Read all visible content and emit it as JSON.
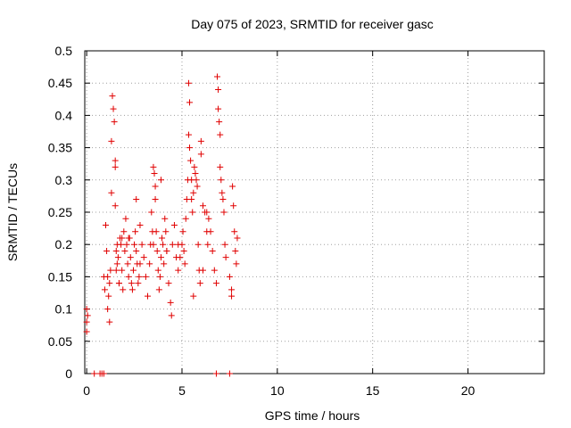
{
  "chart_data": {
    "type": "scatter",
    "title": "Day 075 of 2023, SRMTID for receiver gasc",
    "xlabel": "GPS time / hours",
    "ylabel": "SRMTID / TECUs",
    "xlim": [
      -0.1,
      24
    ],
    "ylim": [
      0,
      0.5
    ],
    "x_ticks": [
      0,
      5,
      10,
      15,
      20
    ],
    "x_tick_labels": [
      "0",
      "5",
      "10",
      "15",
      "20"
    ],
    "y_ticks": [
      0,
      0.05,
      0.1,
      0.15,
      0.2,
      0.25,
      0.3,
      0.35,
      0.4,
      0.45,
      0.5
    ],
    "y_tick_labels": [
      "0",
      "0.05",
      "0.1",
      "0.15",
      "0.2",
      "0.25",
      "0.3",
      "0.35",
      "0.4",
      "0.45",
      "0.5"
    ],
    "grid": true,
    "legend": "none",
    "marker": "plus",
    "color": "#e00000",
    "series": [
      {
        "name": "SRMTID",
        "x": [
          0.0,
          0.0,
          0.0,
          0.05,
          0.4,
          0.7,
          0.8,
          0.9,
          6.8,
          7.5,
          0.9,
          0.95,
          1.0,
          1.05,
          1.1,
          1.1,
          1.15,
          1.2,
          1.2,
          1.25,
          1.3,
          1.3,
          1.35,
          1.4,
          1.45,
          1.5,
          1.5,
          1.5,
          1.55,
          1.55,
          1.6,
          1.6,
          1.65,
          1.7,
          1.75,
          1.8,
          1.85,
          1.9,
          1.95,
          2.0,
          2.05,
          2.1,
          2.15,
          2.2,
          2.25,
          2.3,
          2.35,
          2.4,
          2.45,
          2.5,
          2.55,
          2.6,
          2.65,
          2.7,
          2.75,
          2.8,
          2.9,
          3.0,
          3.1,
          3.2,
          3.3,
          3.35,
          3.4,
          3.45,
          3.5,
          3.55,
          3.6,
          3.6,
          3.65,
          3.7,
          3.75,
          3.8,
          3.85,
          3.9,
          3.95,
          4.0,
          4.05,
          4.1,
          4.15,
          4.2,
          4.3,
          4.4,
          4.45,
          4.5,
          4.6,
          4.7,
          4.8,
          4.9,
          5.0,
          5.05,
          5.1,
          5.15,
          5.2,
          5.25,
          5.3,
          5.35,
          5.35,
          5.4,
          5.4,
          5.45,
          5.5,
          5.5,
          5.55,
          5.6,
          5.65,
          5.7,
          5.75,
          5.8,
          5.85,
          5.9,
          5.95,
          6.0,
          6.0,
          6.1,
          6.2,
          6.3,
          6.35,
          6.4,
          6.5,
          6.6,
          6.7,
          6.8,
          6.85,
          6.9,
          6.9,
          6.95,
          7.0,
          7.0,
          7.05,
          7.1,
          7.15,
          7.2,
          7.25,
          7.3,
          7.5,
          7.6,
          7.65,
          7.7,
          7.75,
          7.8,
          7.85,
          7.9,
          3.5,
          4.8,
          2.2,
          2.8,
          1.7,
          6.3,
          7.6,
          5.6,
          6.1,
          4.2,
          3.9,
          2.6,
          1.85
        ],
        "y": [
          0.065,
          0.08,
          0.1,
          0.09,
          0.0,
          0.0,
          0.0,
          0.0,
          0.0,
          0.0,
          0.15,
          0.13,
          0.23,
          0.19,
          0.1,
          0.15,
          0.12,
          0.08,
          0.14,
          0.16,
          0.28,
          0.36,
          0.43,
          0.41,
          0.39,
          0.33,
          0.32,
          0.26,
          0.16,
          0.19,
          0.2,
          0.17,
          0.18,
          0.14,
          0.21,
          0.2,
          0.16,
          0.13,
          0.22,
          0.19,
          0.24,
          0.2,
          0.17,
          0.15,
          0.21,
          0.18,
          0.14,
          0.13,
          0.16,
          0.2,
          0.22,
          0.19,
          0.17,
          0.14,
          0.15,
          0.23,
          0.2,
          0.18,
          0.15,
          0.12,
          0.17,
          0.2,
          0.25,
          0.22,
          0.32,
          0.31,
          0.29,
          0.27,
          0.22,
          0.19,
          0.16,
          0.13,
          0.15,
          0.18,
          0.21,
          0.2,
          0.17,
          0.24,
          0.22,
          0.19,
          0.14,
          0.11,
          0.09,
          0.2,
          0.23,
          0.18,
          0.16,
          0.18,
          0.2,
          0.22,
          0.19,
          0.17,
          0.24,
          0.27,
          0.3,
          0.37,
          0.45,
          0.42,
          0.35,
          0.33,
          0.3,
          0.27,
          0.25,
          0.28,
          0.32,
          0.31,
          0.3,
          0.29,
          0.2,
          0.16,
          0.14,
          0.36,
          0.34,
          0.26,
          0.25,
          0.22,
          0.2,
          0.24,
          0.22,
          0.19,
          0.16,
          0.14,
          0.46,
          0.44,
          0.41,
          0.39,
          0.37,
          0.32,
          0.3,
          0.28,
          0.27,
          0.25,
          0.2,
          0.18,
          0.15,
          0.12,
          0.29,
          0.26,
          0.22,
          0.19,
          0.17,
          0.21,
          0.2,
          0.2,
          0.21,
          0.17,
          0.14,
          0.25,
          0.13,
          0.12,
          0.16,
          0.19,
          0.3,
          0.27,
          0.21
        ]
      }
    ]
  }
}
